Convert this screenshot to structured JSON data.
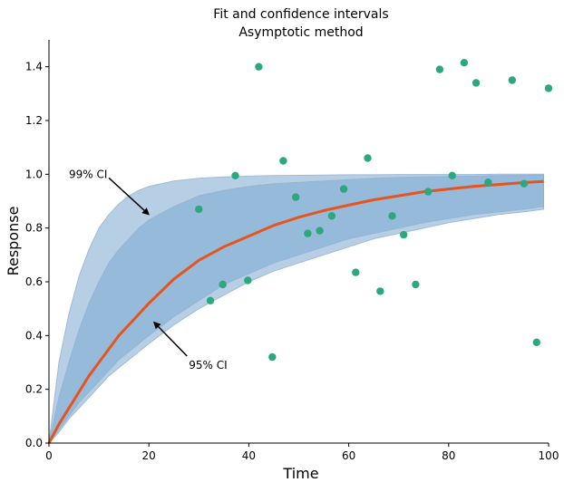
{
  "chart_data": {
    "type": "line",
    "title": "Fit and confidence intervals",
    "subtitle": "Asymptotic method",
    "xlabel": "Time",
    "ylabel": "Response",
    "xlim": [
      0,
      100
    ],
    "ylim": [
      0,
      1.5
    ],
    "xticks": [
      "0",
      "20",
      "40",
      "60",
      "80",
      "100"
    ],
    "yticks": [
      "0.0",
      "0.2",
      "0.4",
      "0.6",
      "0.8",
      "1.0",
      "1.2",
      "1.4"
    ],
    "grid": false,
    "fit": {
      "x": [
        0,
        2,
        4,
        6,
        8,
        10,
        12,
        14,
        16,
        18,
        20,
        25,
        30,
        35,
        40,
        45,
        50,
        55,
        60,
        65,
        70,
        75,
        80,
        85,
        90,
        95,
        99
      ],
      "y": [
        0.0,
        0.07,
        0.13,
        0.19,
        0.25,
        0.3,
        0.35,
        0.4,
        0.44,
        0.48,
        0.52,
        0.61,
        0.68,
        0.73,
        0.77,
        0.81,
        0.84,
        0.865,
        0.885,
        0.905,
        0.92,
        0.935,
        0.945,
        0.955,
        0.962,
        0.969,
        0.973
      ]
    },
    "ci95": {
      "x": [
        0,
        2,
        4,
        6,
        8,
        10,
        12,
        14,
        16,
        18,
        20,
        25,
        30,
        35,
        40,
        45,
        50,
        55,
        60,
        65,
        70,
        75,
        80,
        85,
        90,
        95,
        99
      ],
      "lower": [
        0.0,
        0.05,
        0.1,
        0.15,
        0.19,
        0.23,
        0.27,
        0.31,
        0.34,
        0.37,
        0.4,
        0.47,
        0.53,
        0.59,
        0.63,
        0.67,
        0.7,
        0.73,
        0.76,
        0.78,
        0.8,
        0.82,
        0.835,
        0.85,
        0.86,
        0.87,
        0.88
      ],
      "upper": [
        0.0,
        0.17,
        0.3,
        0.42,
        0.52,
        0.6,
        0.67,
        0.72,
        0.76,
        0.8,
        0.83,
        0.88,
        0.92,
        0.94,
        0.955,
        0.965,
        0.97,
        0.975,
        0.98,
        0.985,
        0.988,
        0.99,
        0.992,
        0.993,
        0.995,
        0.996,
        0.997
      ]
    },
    "ci99": {
      "x": [
        0,
        2,
        4,
        6,
        8,
        10,
        12,
        14,
        16,
        18,
        20,
        25,
        30,
        35,
        40,
        45,
        50,
        55,
        60,
        65,
        70,
        75,
        80,
        85,
        90,
        95,
        99
      ],
      "lower": [
        0.0,
        0.04,
        0.09,
        0.13,
        0.17,
        0.21,
        0.25,
        0.28,
        0.31,
        0.34,
        0.37,
        0.44,
        0.5,
        0.55,
        0.6,
        0.64,
        0.67,
        0.7,
        0.73,
        0.76,
        0.78,
        0.8,
        0.82,
        0.835,
        0.85,
        0.86,
        0.87
      ],
      "upper": [
        0.0,
        0.3,
        0.48,
        0.62,
        0.72,
        0.8,
        0.85,
        0.89,
        0.92,
        0.94,
        0.955,
        0.975,
        0.985,
        0.99,
        0.993,
        0.995,
        0.996,
        0.997,
        0.998,
        0.998,
        0.999,
        0.999,
        0.999,
        0.999,
        1.0,
        1.0,
        1.0
      ]
    },
    "points": [
      {
        "x": 30,
        "y": 0.87
      },
      {
        "x": 32.3,
        "y": 0.53
      },
      {
        "x": 34.8,
        "y": 0.59
      },
      {
        "x": 37.3,
        "y": 0.995
      },
      {
        "x": 39.8,
        "y": 0.605
      },
      {
        "x": 42.0,
        "y": 1.4
      },
      {
        "x": 44.7,
        "y": 0.32
      },
      {
        "x": 46.9,
        "y": 1.05
      },
      {
        "x": 49.4,
        "y": 0.915
      },
      {
        "x": 51.8,
        "y": 0.78
      },
      {
        "x": 54.2,
        "y": 0.79
      },
      {
        "x": 56.6,
        "y": 0.845
      },
      {
        "x": 59.0,
        "y": 0.945
      },
      {
        "x": 61.4,
        "y": 0.635
      },
      {
        "x": 63.8,
        "y": 1.06
      },
      {
        "x": 66.3,
        "y": 0.565
      },
      {
        "x": 68.7,
        "y": 0.845
      },
      {
        "x": 71.0,
        "y": 0.775
      },
      {
        "x": 73.4,
        "y": 0.59
      },
      {
        "x": 75.9,
        "y": 0.935
      },
      {
        "x": 78.2,
        "y": 1.39
      },
      {
        "x": 80.7,
        "y": 0.995
      },
      {
        "x": 83.1,
        "y": 1.415
      },
      {
        "x": 85.5,
        "y": 1.34
      },
      {
        "x": 87.9,
        "y": 0.97
      },
      {
        "x": 92.7,
        "y": 1.35
      },
      {
        "x": 95.1,
        "y": 0.965
      },
      {
        "x": 97.6,
        "y": 0.375
      },
      {
        "x": 100.0,
        "y": 1.32
      }
    ],
    "annotations": [
      {
        "text": "99% CI",
        "text_x": 4,
        "text_y": 1.0,
        "arrow_x": 20,
        "arrow_y": 0.85
      },
      {
        "text": "95% CI",
        "text_x": 28,
        "text_y": 0.29,
        "arrow_x": 21,
        "arrow_y": 0.45
      }
    ],
    "colors": {
      "fit_line": "#e6541f",
      "ci95_band": "#8cb3d6",
      "ci99_band": "#b7cfe5",
      "points": "#2ca87f",
      "annotation_arrow": "#000000"
    }
  }
}
